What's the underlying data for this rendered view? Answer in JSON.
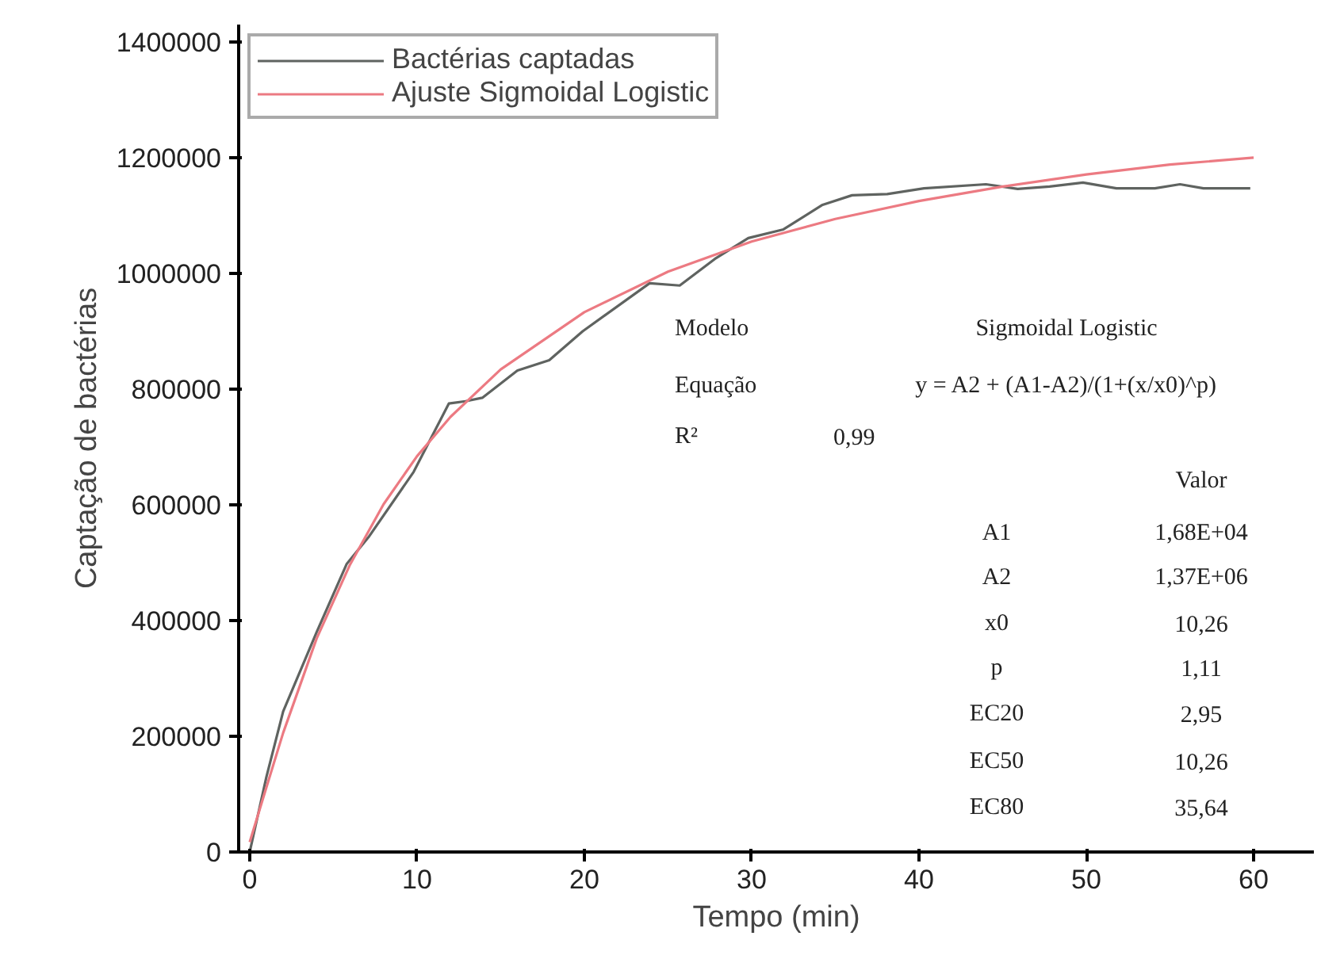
{
  "chart_data": {
    "type": "line",
    "xlabel": "Tempo (min)",
    "ylabel": "Captação de bactérias",
    "xlim": [
      -0.66,
      63.6
    ],
    "ylim": [
      0,
      1430000
    ],
    "xticks": [
      0,
      10,
      20,
      30,
      40,
      50,
      60
    ],
    "yticks": [
      0,
      200000,
      400000,
      600000,
      800000,
      1000000,
      1200000,
      1400000
    ],
    "grid": false,
    "legend": "top left",
    "marker": "none",
    "line_style": "solid",
    "series": [
      {
        "name": "Bactérias captadas",
        "color": "#5f6360",
        "x": [
          0,
          1,
          2,
          4,
          5.8,
          7.1,
          9.8,
          11.9,
          12.9,
          13.9,
          16.0,
          17.9,
          19.9,
          23.9,
          25.7,
          27.8,
          29.8,
          31.9,
          34.2,
          36.0,
          38.1,
          40.3,
          44.0,
          45.9,
          47.8,
          49.8,
          51.8,
          54.1,
          55.6,
          57.0,
          59.8
        ],
        "values": [
          0,
          130000,
          243000,
          380000,
          498000,
          544000,
          657000,
          775000,
          779000,
          785000,
          832000,
          850000,
          900000,
          983000,
          979000,
          1025000,
          1061000,
          1076000,
          1118000,
          1135000,
          1137000,
          1147000,
          1154000,
          1146000,
          1150000,
          1157000,
          1147000,
          1147000,
          1154000,
          1147000,
          1147000
        ]
      },
      {
        "name": "Ajuste Sigmoidal Logistic",
        "color": "#ec7a82",
        "x": [
          0,
          1,
          2,
          4,
          6,
          8,
          10,
          12,
          15,
          20,
          25,
          30,
          35,
          40,
          45,
          50,
          55,
          60
        ],
        "values": [
          17000,
          112000,
          206000,
          369000,
          497000,
          601000,
          684000,
          752000,
          834000,
          933000,
          1003000,
          1055000,
          1094000,
          1125000,
          1150000,
          1171000,
          1188000,
          1200000
        ]
      }
    ],
    "annotations": [
      "Modelo",
      "Sigmoidal Logistic",
      "Equação",
      "y = A2 + (A1-A2)/(1+(x/x0)^p)",
      "R²",
      "0,99",
      "Valor",
      "A1",
      "1,68E+04",
      "A2",
      "1,37E+06",
      "x0",
      "10,26",
      "p",
      "1,11",
      "EC20",
      "2,95",
      "EC50",
      "10,26",
      "EC80",
      "35,64"
    ]
  }
}
